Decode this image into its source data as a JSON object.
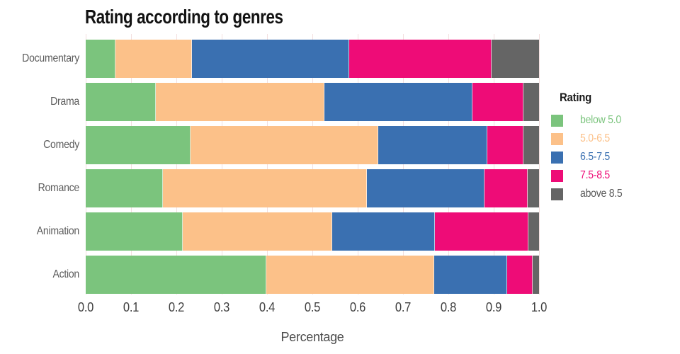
{
  "title": "Rating according to genres",
  "xlabel": "Percentage",
  "colors": {
    "below_5": "#7bc47d",
    "r5_65": "#fcc189",
    "r65_75": "#3a70b1",
    "r75_85": "#ee0c77",
    "above_85": "#656565",
    "grid": "#f3dfdf"
  },
  "legend": {
    "title": "Rating",
    "items": [
      {
        "label": "below 5.0",
        "color": "#7bc47d"
      },
      {
        "label": "5.0-6.5",
        "color": "#fcc189"
      },
      {
        "label": "6.5-7.5",
        "color": "#3a70b1"
      },
      {
        "label": "7.5-8.5",
        "color": "#ee0c77"
      },
      {
        "label": "above 8.5",
        "color": "#656565",
        "text_color": "#5a5a5a"
      }
    ]
  },
  "chart_data": {
    "type": "bar",
    "orientation": "horizontal",
    "stacked": true,
    "title": "Rating according to genres",
    "xlabel": "Percentage",
    "ylabel": "",
    "xlim": [
      0,
      1
    ],
    "grid": true,
    "legend_position": "right",
    "categories": [
      "Documentary",
      "Drama",
      "Comedy",
      "Romance",
      "Animation",
      "Action"
    ],
    "series": [
      {
        "name": "below 5.0",
        "color": "#7bc47d",
        "values": [
          0.065,
          0.155,
          0.232,
          0.17,
          0.214,
          0.398
        ]
      },
      {
        "name": "5.0-6.5",
        "color": "#fcc189",
        "values": [
          0.17,
          0.372,
          0.414,
          0.45,
          0.33,
          0.37
        ]
      },
      {
        "name": "6.5-7.5",
        "color": "#3a70b1",
        "values": [
          0.347,
          0.326,
          0.24,
          0.259,
          0.227,
          0.162
        ]
      },
      {
        "name": "7.5-8.5",
        "color": "#ee0c77",
        "values": [
          0.314,
          0.113,
          0.079,
          0.096,
          0.205,
          0.056
        ]
      },
      {
        "name": "above 8.5",
        "color": "#656565",
        "values": [
          0.104,
          0.034,
          0.035,
          0.025,
          0.024,
          0.014
        ]
      }
    ],
    "x_ticks": [
      "0.0",
      "0.1",
      "0.2",
      "0.3",
      "0.4",
      "0.5",
      "0.6",
      "0.7",
      "0.8",
      "0.9",
      "1.0"
    ]
  }
}
